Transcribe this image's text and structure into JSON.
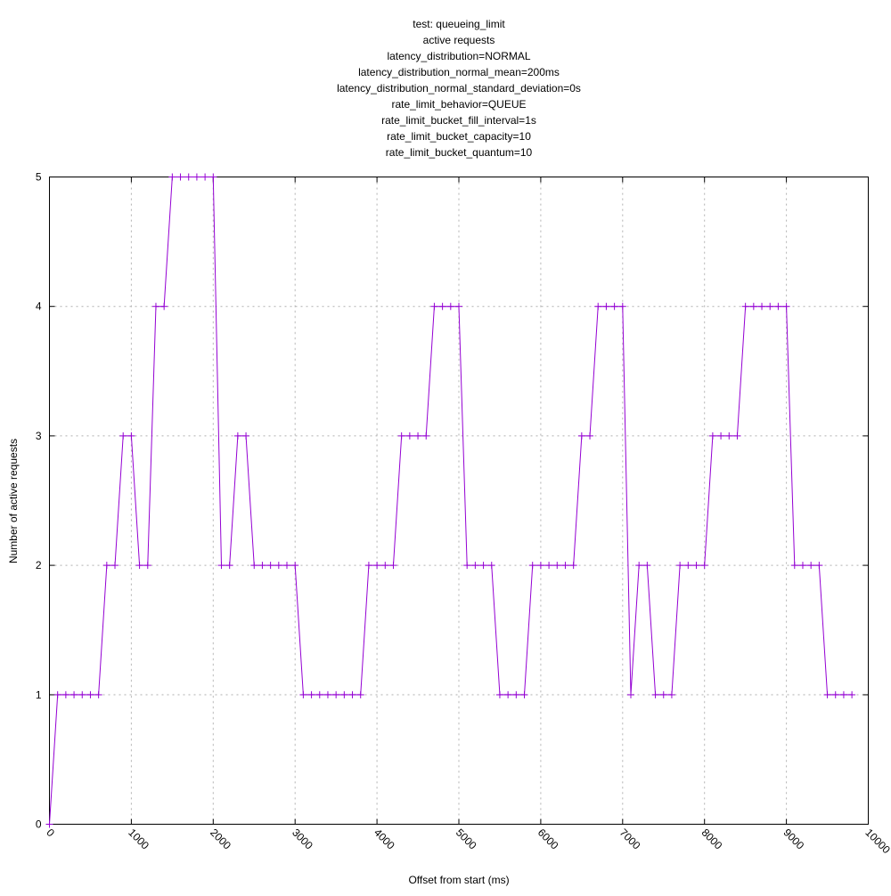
{
  "chart_data": {
    "type": "line",
    "title_lines": [
      "test: queueing_limit",
      "active requests",
      "latency_distribution=NORMAL",
      "latency_distribution_normal_mean=200ms",
      "latency_distribution_normal_standard_deviation=0s",
      "rate_limit_behavior=QUEUE",
      "rate_limit_bucket_fill_interval=1s",
      "rate_limit_bucket_capacity=10",
      "rate_limit_bucket_quantum=10"
    ],
    "xlabel": "Offset from start (ms)",
    "ylabel": "Number of active requests",
    "xlim": [
      0,
      10000
    ],
    "ylim": [
      0,
      5
    ],
    "x_ticks": [
      0,
      1000,
      2000,
      3000,
      4000,
      5000,
      6000,
      7000,
      8000,
      9000,
      10000
    ],
    "y_ticks": [
      0,
      1,
      2,
      3,
      4,
      5
    ],
    "grid": true,
    "line_color": "#9400d3",
    "marker": "plus",
    "series": [
      {
        "x": [
          0,
          100,
          200,
          300,
          400,
          500,
          600,
          700,
          800,
          900,
          1000,
          1100,
          1200,
          1300,
          1400,
          1500,
          1600,
          1700,
          1800,
          1900,
          2000,
          2100,
          2200,
          2300,
          2400,
          2500,
          2600,
          2700,
          2800,
          2900,
          3000,
          3100,
          3200,
          3300,
          3400,
          3500,
          3600,
          3700,
          3800,
          3900,
          4000,
          4100,
          4200,
          4300,
          4400,
          4500,
          4600,
          4700,
          4800,
          4900,
          5000,
          5100,
          5200,
          5300,
          5400,
          5500,
          5600,
          5700,
          5800,
          5900,
          6000,
          6100,
          6200,
          6300,
          6400,
          6500,
          6600,
          6700,
          6800,
          6900,
          7000,
          7100,
          7200,
          7300,
          7400,
          7500,
          7600,
          7700,
          7800,
          7900,
          8000,
          8100,
          8200,
          8300,
          8400,
          8500,
          8600,
          8700,
          8800,
          8900,
          9000,
          9100,
          9200,
          9300,
          9400,
          9500,
          9600,
          9700,
          9800
        ],
        "y": [
          0,
          1,
          1,
          1,
          1,
          1,
          1,
          2,
          2,
          3,
          3,
          2,
          2,
          4,
          4,
          5,
          5,
          5,
          5,
          5,
          5,
          2,
          2,
          3,
          3,
          2,
          2,
          2,
          2,
          2,
          2,
          1,
          1,
          1,
          1,
          1,
          1,
          1,
          1,
          2,
          2,
          2,
          2,
          3,
          3,
          3,
          3,
          4,
          4,
          4,
          4,
          2,
          2,
          2,
          2,
          1,
          1,
          1,
          1,
          2,
          2,
          2,
          2,
          2,
          2,
          3,
          3,
          4,
          4,
          4,
          4,
          1,
          2,
          2,
          1,
          1,
          1,
          2,
          2,
          2,
          2,
          3,
          3,
          3,
          3,
          4,
          4,
          4,
          4,
          4,
          4,
          2,
          2,
          2,
          2,
          1,
          1,
          1,
          1
        ]
      }
    ]
  }
}
